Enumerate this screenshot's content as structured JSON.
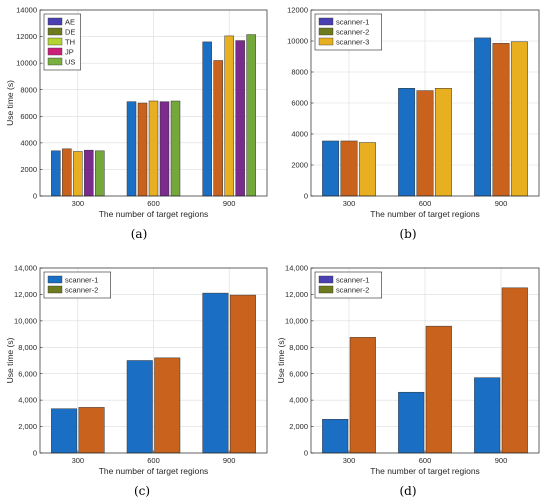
{
  "chart_data": [
    {
      "type": "bar",
      "caption": "(a)",
      "categories": [
        "300",
        "600",
        "900"
      ],
      "xlabel": "The number of target regions",
      "ylabel": "Use time (s)",
      "ylim": [
        0,
        14000
      ],
      "yticks": [
        0,
        2000,
        4000,
        6000,
        8000,
        10000,
        12000,
        14000
      ],
      "ytick_labels": [
        "0",
        "2000",
        "4000",
        "6000",
        "8000",
        "10000",
        "12000",
        "14000"
      ],
      "grid": true,
      "legend_position": "top-left",
      "series": [
        {
          "name": "AE",
          "values": [
            3400,
            7100,
            11600
          ],
          "color": "#1a6fc4",
          "legend_color": "#4a3fb3"
        },
        {
          "name": "DE",
          "values": [
            3550,
            7000,
            10200
          ],
          "color": "#c9621d",
          "legend_color": "#6e7b1f"
        },
        {
          "name": "TH",
          "values": [
            3350,
            7150,
            12050
          ],
          "color": "#e8b020",
          "legend_color": "#b2d430"
        },
        {
          "name": "JP",
          "values": [
            3450,
            7100,
            11700
          ],
          "color": "#7a2b8c",
          "legend_color": "#cc1f7a"
        },
        {
          "name": "US",
          "values": [
            3400,
            7150,
            12150
          ],
          "color": "#74a83a",
          "legend_color": "#7ab040"
        }
      ]
    },
    {
      "type": "bar",
      "caption": "(b)",
      "categories": [
        "300",
        "600",
        "900"
      ],
      "xlabel": "The number of target regions",
      "ylabel": "",
      "ylim": [
        0,
        12000
      ],
      "yticks": [
        0,
        2000,
        4000,
        6000,
        8000,
        10000,
        12000
      ],
      "ytick_labels": [
        "0",
        "2000",
        "4000",
        "6000",
        "8000",
        "10000",
        "12000"
      ],
      "grid": true,
      "legend_position": "top-left",
      "series": [
        {
          "name": "scanner-1",
          "values": [
            3550,
            6950,
            10200
          ],
          "color": "#1a6fc4",
          "legend_color": "#4a3fb3"
        },
        {
          "name": "scanner-2",
          "values": [
            3550,
            6800,
            9850
          ],
          "color": "#c9621d",
          "legend_color": "#6e7b1f"
        },
        {
          "name": "scanner-3",
          "values": [
            3450,
            6950,
            9950
          ],
          "color": "#e8b020",
          "legend_color": "#e8b020"
        }
      ]
    },
    {
      "type": "bar",
      "caption": "(c)",
      "categories": [
        "300",
        "600",
        "900"
      ],
      "xlabel": "The number of target regions",
      "ylabel": "Use time (s)",
      "ylim": [
        0,
        14000
      ],
      "yticks": [
        0,
        2000,
        4000,
        6000,
        8000,
        10000,
        12000,
        14000
      ],
      "ytick_labels": [
        "0",
        "2,000",
        "4,000",
        "6,000",
        "8,000",
        "10,000",
        "12,000",
        "14,000"
      ],
      "grid": true,
      "legend_position": "top-left",
      "series": [
        {
          "name": "scanner-1",
          "values": [
            3350,
            7000,
            12100
          ],
          "color": "#1a6fc4",
          "legend_color": "#1a6fc4"
        },
        {
          "name": "scanner-2",
          "values": [
            3450,
            7200,
            11950
          ],
          "color": "#c9621d",
          "legend_color": "#6e7b1f"
        }
      ]
    },
    {
      "type": "bar",
      "caption": "(d)",
      "categories": [
        "300",
        "600",
        "900"
      ],
      "xlabel": "The number of target regions",
      "ylabel": "Use time (s)",
      "ylim": [
        0,
        14000
      ],
      "yticks": [
        0,
        2000,
        4000,
        6000,
        8000,
        10000,
        12000,
        14000
      ],
      "ytick_labels": [
        "0",
        "2,000",
        "4,000",
        "6,000",
        "8,000",
        "10,000",
        "12,000",
        "14,000"
      ],
      "grid": true,
      "legend_position": "top-left",
      "series": [
        {
          "name": "scanner-1",
          "values": [
            2550,
            4600,
            5700
          ],
          "color": "#1a6fc4",
          "legend_color": "#4a3fb3"
        },
        {
          "name": "scanner-2",
          "values": [
            8750,
            9600,
            12500
          ],
          "color": "#c9621d",
          "legend_color": "#6e7b1f"
        }
      ]
    }
  ]
}
